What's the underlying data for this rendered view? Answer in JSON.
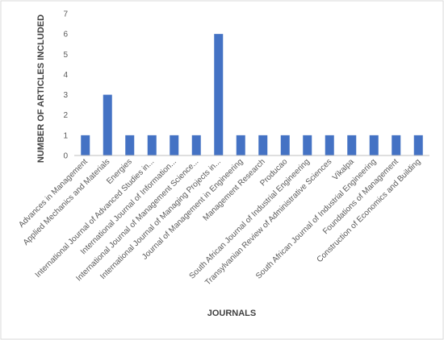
{
  "chart_data": {
    "type": "bar",
    "title": "",
    "xlabel": "JOURNALS",
    "ylabel": "NUMBER OF ARTICLES INCLUDED",
    "ylim": [
      0,
      7
    ],
    "yticks": [
      "0",
      "1",
      "2",
      "3",
      "4",
      "5",
      "6",
      "7"
    ],
    "grid": false,
    "legend": "none",
    "bar_color": "#4472c4",
    "categories": [
      "Advances in Management",
      "Applied Mechanics and Materials",
      "Energies",
      "International Journal of Advanced Studies in...",
      "International Journal of Information...",
      "International Journal of Management Science...",
      "International Journal of Managing Projects in...",
      "Journal of Management in Engineering",
      "Management Research",
      "Producao",
      "South African Journal of Industrial Engineering",
      "Transylvanian Review of Administrative Sciences",
      "Vikalpa",
      "South African Journal of Industrial Engineering",
      "Foundations of Management",
      "Construction of Economics and Building"
    ],
    "values": [
      1,
      3,
      1,
      1,
      1,
      1,
      6,
      1,
      1,
      1,
      1,
      1,
      1,
      1,
      1,
      1
    ]
  }
}
